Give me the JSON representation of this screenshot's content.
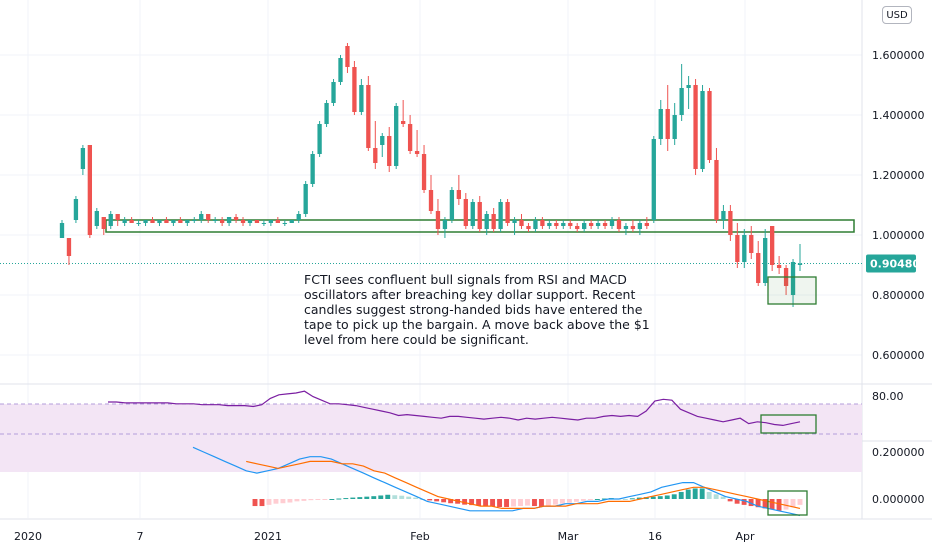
{
  "currency": "USD",
  "annotation": "FCTI sees confluent bull signals from RSI and MACD oscillators after breaching key dollar support. Recent candles suggest strong-handed bids have entered the tape to pick up the bargain. A move back above the $1 level from here could be significant.",
  "colors": {
    "up": "#26a69a",
    "down": "#ef5350",
    "rsi_line": "#7b1fa2",
    "rsi_band": "#f3e5f5",
    "macd_line": "#2196f3",
    "signal_line": "#ff6d00",
    "box": "#2e7d32",
    "last_price": "#26a69a"
  },
  "chart_data": {
    "type": "candlestick",
    "price_axis_ticks": [
      "1.600000",
      "1.400000",
      "1.200000",
      "1.000000",
      "0.800000",
      "0.600000"
    ],
    "price_range": [
      0.45,
      1.75
    ],
    "last_price": "0.904800",
    "time_axis_labels": [
      "2020",
      "7",
      "2021",
      "Feb",
      "Mar",
      "16",
      "Apr"
    ],
    "rsi_ticks": [
      "80.00"
    ],
    "macd_ticks": [
      "0.200000",
      "0.000000"
    ],
    "support_zone": [
      1.01,
      1.05
    ],
    "candles": [
      {
        "o": 0.99,
        "h": 1.05,
        "l": 0.99,
        "c": 1.04
      },
      {
        "o": 0.99,
        "h": 0.99,
        "l": 0.9,
        "c": 0.93
      },
      {
        "o": 1.05,
        "h": 1.13,
        "l": 1.04,
        "c": 1.12
      },
      {
        "o": 1.22,
        "h": 1.3,
        "l": 1.2,
        "c": 1.29
      },
      {
        "o": 1.3,
        "h": 1.3,
        "l": 0.99,
        "c": 1.0
      },
      {
        "o": 1.03,
        "h": 1.09,
        "l": 1.02,
        "c": 1.08
      },
      {
        "o": 1.06,
        "h": 1.06,
        "l": 1.0,
        "c": 1.02
      },
      {
        "o": 1.03,
        "h": 1.08,
        "l": 1.02,
        "c": 1.07
      },
      {
        "o": 1.07,
        "h": 1.07,
        "l": 1.03,
        "c": 1.05
      },
      {
        "o": 1.04,
        "h": 1.06,
        "l": 1.03,
        "c": 1.05
      },
      {
        "o": 1.05,
        "h": 1.06,
        "l": 1.04,
        "c": 1.04
      },
      {
        "o": 1.04,
        "h": 1.05,
        "l": 1.03,
        "c": 1.04
      },
      {
        "o": 1.04,
        "h": 1.05,
        "l": 1.03,
        "c": 1.05
      },
      {
        "o": 1.05,
        "h": 1.06,
        "l": 1.04,
        "c": 1.04
      },
      {
        "o": 1.04,
        "h": 1.05,
        "l": 1.03,
        "c": 1.05
      },
      {
        "o": 1.05,
        "h": 1.06,
        "l": 1.04,
        "c": 1.04
      },
      {
        "o": 1.04,
        "h": 1.05,
        "l": 1.03,
        "c": 1.05
      },
      {
        "o": 1.05,
        "h": 1.06,
        "l": 1.04,
        "c": 1.04
      },
      {
        "o": 1.04,
        "h": 1.05,
        "l": 1.03,
        "c": 1.05
      },
      {
        "o": 1.05,
        "h": 1.06,
        "l": 1.04,
        "c": 1.05
      },
      {
        "o": 1.05,
        "h": 1.08,
        "l": 1.04,
        "c": 1.07
      },
      {
        "o": 1.07,
        "h": 1.07,
        "l": 1.04,
        "c": 1.05
      },
      {
        "o": 1.05,
        "h": 1.06,
        "l": 1.04,
        "c": 1.05
      },
      {
        "o": 1.05,
        "h": 1.06,
        "l": 1.03,
        "c": 1.04
      },
      {
        "o": 1.04,
        "h": 1.06,
        "l": 1.03,
        "c": 1.06
      },
      {
        "o": 1.06,
        "h": 1.07,
        "l": 1.04,
        "c": 1.05
      },
      {
        "o": 1.05,
        "h": 1.06,
        "l": 1.03,
        "c": 1.04
      },
      {
        "o": 1.04,
        "h": 1.05,
        "l": 1.03,
        "c": 1.05
      },
      {
        "o": 1.05,
        "h": 1.05,
        "l": 1.04,
        "c": 1.04
      },
      {
        "o": 1.04,
        "h": 1.05,
        "l": 1.03,
        "c": 1.04
      },
      {
        "o": 1.04,
        "h": 1.05,
        "l": 1.03,
        "c": 1.05
      },
      {
        "o": 1.05,
        "h": 1.06,
        "l": 1.04,
        "c": 1.04
      },
      {
        "o": 1.04,
        "h": 1.05,
        "l": 1.03,
        "c": 1.04
      },
      {
        "o": 1.04,
        "h": 1.05,
        "l": 1.04,
        "c": 1.05
      },
      {
        "o": 1.05,
        "h": 1.08,
        "l": 1.04,
        "c": 1.07
      },
      {
        "o": 1.07,
        "h": 1.18,
        "l": 1.06,
        "c": 1.17
      },
      {
        "o": 1.17,
        "h": 1.28,
        "l": 1.16,
        "c": 1.27
      },
      {
        "o": 1.27,
        "h": 1.38,
        "l": 1.26,
        "c": 1.37
      },
      {
        "o": 1.37,
        "h": 1.45,
        "l": 1.36,
        "c": 1.44
      },
      {
        "o": 1.44,
        "h": 1.52,
        "l": 1.43,
        "c": 1.51
      },
      {
        "o": 1.51,
        "h": 1.6,
        "l": 1.5,
        "c": 1.59
      },
      {
        "o": 1.63,
        "h": 1.64,
        "l": 1.54,
        "c": 1.56
      },
      {
        "o": 1.56,
        "h": 1.58,
        "l": 1.4,
        "c": 1.41
      },
      {
        "o": 1.41,
        "h": 1.52,
        "l": 1.4,
        "c": 1.5
      },
      {
        "o": 1.5,
        "h": 1.53,
        "l": 1.28,
        "c": 1.29
      },
      {
        "o": 1.29,
        "h": 1.38,
        "l": 1.22,
        "c": 1.24
      },
      {
        "o": 1.3,
        "h": 1.34,
        "l": 1.26,
        "c": 1.33
      },
      {
        "o": 1.33,
        "h": 1.36,
        "l": 1.21,
        "c": 1.23
      },
      {
        "o": 1.23,
        "h": 1.44,
        "l": 1.22,
        "c": 1.43
      },
      {
        "o": 1.38,
        "h": 1.45,
        "l": 1.36,
        "c": 1.37
      },
      {
        "o": 1.37,
        "h": 1.4,
        "l": 1.27,
        "c": 1.28
      },
      {
        "o": 1.28,
        "h": 1.35,
        "l": 1.26,
        "c": 1.27
      },
      {
        "o": 1.27,
        "h": 1.3,
        "l": 1.14,
        "c": 1.15
      },
      {
        "o": 1.15,
        "h": 1.2,
        "l": 1.07,
        "c": 1.08
      },
      {
        "o": 1.08,
        "h": 1.12,
        "l": 1.0,
        "c": 1.02
      },
      {
        "o": 1.02,
        "h": 1.06,
        "l": 0.99,
        "c": 1.05
      },
      {
        "o": 1.05,
        "h": 1.16,
        "l": 1.04,
        "c": 1.15
      },
      {
        "o": 1.15,
        "h": 1.2,
        "l": 1.1,
        "c": 1.12
      },
      {
        "o": 1.12,
        "h": 1.14,
        "l": 1.02,
        "c": 1.03
      },
      {
        "o": 1.03,
        "h": 1.12,
        "l": 1.02,
        "c": 1.11
      },
      {
        "o": 1.11,
        "h": 1.13,
        "l": 1.01,
        "c": 1.02
      },
      {
        "o": 1.02,
        "h": 1.08,
        "l": 1.0,
        "c": 1.07
      },
      {
        "o": 1.07,
        "h": 1.09,
        "l": 1.01,
        "c": 1.02
      },
      {
        "o": 1.02,
        "h": 1.12,
        "l": 1.01,
        "c": 1.11
      },
      {
        "o": 1.11,
        "h": 1.12,
        "l": 1.03,
        "c": 1.04
      },
      {
        "o": 1.04,
        "h": 1.06,
        "l": 1.0,
        "c": 1.05
      },
      {
        "o": 1.05,
        "h": 1.07,
        "l": 1.02,
        "c": 1.03
      },
      {
        "o": 1.03,
        "h": 1.04,
        "l": 1.01,
        "c": 1.02
      },
      {
        "o": 1.02,
        "h": 1.06,
        "l": 1.01,
        "c": 1.05
      },
      {
        "o": 1.05,
        "h": 1.06,
        "l": 1.02,
        "c": 1.03
      },
      {
        "o": 1.03,
        "h": 1.05,
        "l": 1.02,
        "c": 1.04
      },
      {
        "o": 1.04,
        "h": 1.05,
        "l": 1.02,
        "c": 1.03
      },
      {
        "o": 1.03,
        "h": 1.05,
        "l": 1.02,
        "c": 1.04
      },
      {
        "o": 1.04,
        "h": 1.05,
        "l": 1.02,
        "c": 1.03
      },
      {
        "o": 1.03,
        "h": 1.04,
        "l": 1.01,
        "c": 1.02
      },
      {
        "o": 1.02,
        "h": 1.05,
        "l": 1.01,
        "c": 1.04
      },
      {
        "o": 1.04,
        "h": 1.05,
        "l": 1.02,
        "c": 1.03
      },
      {
        "o": 1.03,
        "h": 1.05,
        "l": 1.02,
        "c": 1.04
      },
      {
        "o": 1.04,
        "h": 1.05,
        "l": 1.02,
        "c": 1.03
      },
      {
        "o": 1.03,
        "h": 1.06,
        "l": 1.02,
        "c": 1.05
      },
      {
        "o": 1.05,
        "h": 1.06,
        "l": 1.01,
        "c": 1.02
      },
      {
        "o": 1.02,
        "h": 1.04,
        "l": 1.0,
        "c": 1.03
      },
      {
        "o": 1.03,
        "h": 1.05,
        "l": 1.01,
        "c": 1.02
      },
      {
        "o": 1.02,
        "h": 1.05,
        "l": 1.0,
        "c": 1.04
      },
      {
        "o": 1.04,
        "h": 1.06,
        "l": 1.02,
        "c": 1.03
      },
      {
        "o": 1.05,
        "h": 1.33,
        "l": 1.04,
        "c": 1.32
      },
      {
        "o": 1.32,
        "h": 1.45,
        "l": 1.3,
        "c": 1.42
      },
      {
        "o": 1.42,
        "h": 1.5,
        "l": 1.28,
        "c": 1.32
      },
      {
        "o": 1.32,
        "h": 1.44,
        "l": 1.3,
        "c": 1.4
      },
      {
        "o": 1.4,
        "h": 1.57,
        "l": 1.38,
        "c": 1.49
      },
      {
        "o": 1.49,
        "h": 1.53,
        "l": 1.42,
        "c": 1.5
      },
      {
        "o": 1.5,
        "h": 1.52,
        "l": 1.2,
        "c": 1.22
      },
      {
        "o": 1.22,
        "h": 1.5,
        "l": 1.21,
        "c": 1.48
      },
      {
        "o": 1.48,
        "h": 1.49,
        "l": 1.24,
        "c": 1.25
      },
      {
        "o": 1.25,
        "h": 1.29,
        "l": 1.04,
        "c": 1.05
      },
      {
        "o": 1.05,
        "h": 1.1,
        "l": 1.02,
        "c": 1.08
      },
      {
        "o": 1.08,
        "h": 1.1,
        "l": 0.98,
        "c": 1.0
      },
      {
        "o": 1.0,
        "h": 1.04,
        "l": 0.89,
        "c": 0.91
      },
      {
        "o": 0.91,
        "h": 1.02,
        "l": 0.89,
        "c": 1.0
      },
      {
        "o": 1.0,
        "h": 1.03,
        "l": 0.92,
        "c": 0.94
      },
      {
        "o": 0.94,
        "h": 0.98,
        "l": 0.83,
        "c": 0.84
      },
      {
        "o": 0.84,
        "h": 1.02,
        "l": 0.83,
        "c": 0.99
      },
      {
        "o": 1.03,
        "h": 1.03,
        "l": 0.88,
        "c": 0.9
      },
      {
        "o": 0.9,
        "h": 0.93,
        "l": 0.87,
        "c": 0.89
      },
      {
        "o": 0.89,
        "h": 0.9,
        "l": 0.8,
        "c": 0.83
      },
      {
        "o": 0.8,
        "h": 0.92,
        "l": 0.76,
        "c": 0.91
      },
      {
        "o": 0.9,
        "h": 0.97,
        "l": 0.88,
        "c": 0.905
      }
    ],
    "rsi": [
      70,
      70,
      69,
      69,
      69,
      69,
      69,
      69,
      68,
      68,
      68,
      67,
      67,
      67,
      66,
      66,
      66,
      65,
      67,
      74,
      78,
      79,
      80,
      82,
      76,
      72,
      68,
      68,
      67,
      66,
      64,
      62,
      60,
      58,
      55,
      56,
      55,
      54,
      53,
      52,
      54,
      54,
      53,
      52,
      51,
      52,
      53,
      52,
      50,
      52,
      51,
      52,
      53,
      52,
      51,
      50,
      52,
      52,
      54,
      55,
      54,
      55,
      54,
      60,
      71,
      73,
      72,
      62,
      58,
      54,
      52,
      50,
      48,
      50,
      52,
      46,
      48,
      47,
      45,
      44,
      46,
      48
    ],
    "macd": [
      0.22,
      0.2,
      0.18,
      0.16,
      0.14,
      0.12,
      0.11,
      0.12,
      0.13,
      0.15,
      0.17,
      0.18,
      0.18,
      0.17,
      0.15,
      0.13,
      0.11,
      0.09,
      0.07,
      0.05,
      0.03,
      0.01,
      -0.01,
      -0.02,
      -0.03,
      -0.04,
      -0.05,
      -0.05,
      -0.05,
      -0.05,
      -0.05,
      -0.04,
      -0.04,
      -0.03,
      -0.03,
      -0.02,
      -0.02,
      -0.01,
      -0.01,
      0.0,
      0.0,
      0.01,
      0.02,
      0.03,
      0.05,
      0.06,
      0.07,
      0.07,
      0.05,
      0.03,
      0.01,
      0.0,
      -0.01,
      -0.03,
      -0.04,
      -0.05,
      -0.06,
      -0.07
    ],
    "signal": [
      null,
      null,
      null,
      null,
      null,
      0.16,
      0.15,
      0.14,
      0.13,
      0.14,
      0.15,
      0.16,
      0.16,
      0.16,
      0.15,
      0.15,
      0.14,
      0.12,
      0.11,
      0.09,
      0.07,
      0.05,
      0.03,
      0.01,
      0.0,
      -0.01,
      -0.02,
      -0.03,
      -0.03,
      -0.04,
      -0.04,
      -0.04,
      -0.04,
      -0.03,
      -0.03,
      -0.03,
      -0.02,
      -0.02,
      -0.02,
      -0.01,
      -0.01,
      -0.01,
      0.0,
      0.01,
      0.02,
      0.03,
      0.04,
      0.05,
      0.05,
      0.04,
      0.03,
      0.02,
      0.01,
      0.0,
      -0.01,
      -0.02,
      -0.03,
      -0.04
    ],
    "histogram": [
      -0.03,
      -0.03,
      -0.025,
      -0.02,
      -0.018,
      -0.015,
      -0.01,
      -0.008,
      -0.005,
      -0.004,
      -0.002,
      0.0,
      0.002,
      0.004,
      0.006,
      0.008,
      0.01,
      0.012,
      0.015,
      0.018,
      0.016,
      0.014,
      0.01,
      0.006,
      0.0,
      -0.006,
      -0.01,
      -0.014,
      -0.018,
      -0.02,
      -0.024,
      -0.026,
      -0.028,
      -0.03,
      -0.032,
      -0.034,
      -0.034,
      -0.032,
      -0.03,
      -0.028,
      -0.03,
      -0.032,
      -0.028,
      -0.024,
      -0.02,
      -0.016,
      -0.012,
      -0.008,
      -0.004,
      0.0,
      0.002,
      0.004,
      0.002,
      0.0,
      0.003,
      0.006,
      0.008,
      0.01,
      0.012,
      0.015,
      0.02,
      0.03,
      0.04,
      0.045,
      0.045,
      0.03,
      0.02,
      0.01,
      -0.01,
      -0.02,
      -0.025,
      -0.03,
      -0.035,
      -0.04,
      -0.045,
      -0.05,
      -0.045,
      -0.035,
      -0.025
    ]
  }
}
